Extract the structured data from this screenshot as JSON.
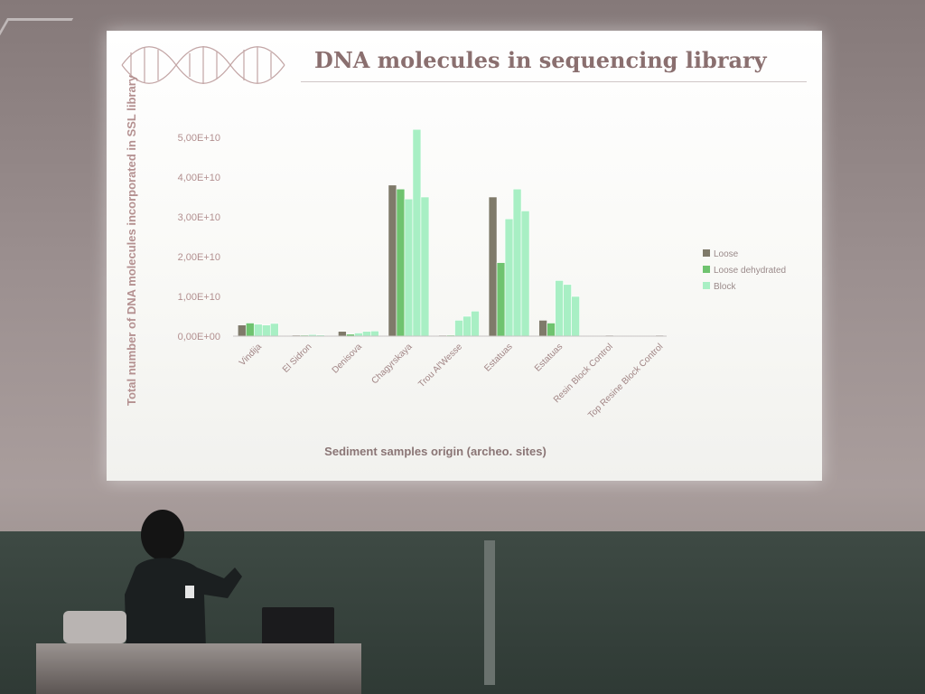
{
  "slide": {
    "title": "DNA molecules in sequencing library",
    "colors": {
      "title": "#8a6f6f",
      "loose": "#7f7a6a",
      "loose_dehydrated": "#6fc36f",
      "block": "#a8efc4"
    }
  },
  "chart_data": {
    "type": "bar",
    "title": "DNA molecules in sequencing library",
    "xlabel": "Sediment samples origin (archeo. sites)",
    "ylabel": "Total number of DNA molecules incorporated in SSL library",
    "ylim": [
      0,
      50000000000
    ],
    "ytick_labels": [
      "0,00E+00",
      "1,00E+10",
      "2,00E+10",
      "3,00E+10",
      "4,00E+10",
      "5,00E+10"
    ],
    "categories": [
      "Vindija",
      "El Sidron",
      "Denisova",
      "Chagyrskaya",
      "Trou Al'Wesse",
      "Estatuas",
      "Estatuas",
      "Resin Block Control",
      "Top Resine Block Control"
    ],
    "groups": [
      {
        "bars": [
          {
            "series": 0,
            "value": 2800000000
          },
          {
            "series": 1,
            "value": 3300000000
          },
          {
            "series": 2,
            "value": 3000000000
          },
          {
            "series": 2,
            "value": 2800000000
          },
          {
            "series": 2,
            "value": 3200000000
          }
        ]
      },
      {
        "bars": [
          {
            "series": 0,
            "value": 250000000
          },
          {
            "series": 1,
            "value": 250000000
          },
          {
            "series": 2,
            "value": 400000000
          },
          {
            "series": 2,
            "value": 300000000
          }
        ]
      },
      {
        "bars": [
          {
            "series": 0,
            "value": 1200000000
          },
          {
            "series": 1,
            "value": 500000000
          },
          {
            "series": 2,
            "value": 800000000
          },
          {
            "series": 2,
            "value": 1200000000
          },
          {
            "series": 2,
            "value": 1300000000
          }
        ]
      },
      {
        "bars": [
          {
            "series": 0,
            "value": 38000000000
          },
          {
            "series": 1,
            "value": 37000000000
          },
          {
            "series": 2,
            "value": 34500000000
          },
          {
            "series": 2,
            "value": 52000000000
          },
          {
            "series": 2,
            "value": 35000000000
          }
        ]
      },
      {
        "bars": [
          {
            "series": 0,
            "value": 150000000
          },
          {
            "series": 1,
            "value": 250000000
          },
          {
            "series": 2,
            "value": 4000000000
          },
          {
            "series": 2,
            "value": 5000000000
          },
          {
            "series": 2,
            "value": 6300000000
          }
        ]
      },
      {
        "bars": [
          {
            "series": 0,
            "value": 35000000000
          },
          {
            "series": 1,
            "value": 18500000000
          },
          {
            "series": 2,
            "value": 29500000000
          },
          {
            "series": 2,
            "value": 37000000000
          },
          {
            "series": 2,
            "value": 31500000000
          }
        ]
      },
      {
        "bars": [
          {
            "series": 0,
            "value": 4000000000
          },
          {
            "series": 1,
            "value": 3300000000
          },
          {
            "series": 2,
            "value": 14000000000
          },
          {
            "series": 2,
            "value": 13000000000
          },
          {
            "series": 2,
            "value": 10000000000
          }
        ]
      },
      {
        "bars": [
          {
            "series": 0,
            "value": 50000000
          }
        ]
      },
      {
        "bars": [
          {
            "series": 0,
            "value": 50000000
          }
        ]
      }
    ],
    "series": [
      {
        "name": "Loose",
        "color": "#7f7a6a"
      },
      {
        "name": "Loose dehydrated",
        "color": "#6fc36f"
      },
      {
        "name": "Block",
        "color": "#a8efc4"
      }
    ],
    "legend_position": "right",
    "grid": false
  }
}
